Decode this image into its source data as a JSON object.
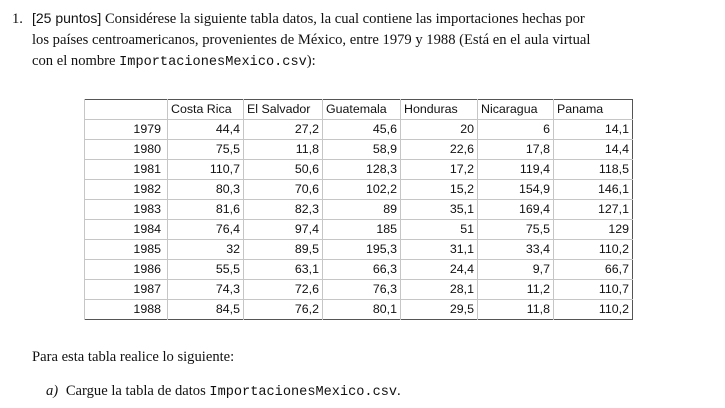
{
  "problem": {
    "number": "1.",
    "points": "[25 puntos]",
    "line1": "Considérese la siguiente tabla datos, la cual contiene las importaciones hechas por",
    "line2": "los países centroamericanos, provenientes de México, entre 1979 y 1988 (Está en el aula virtual",
    "line3_prefix": "con el nombre ",
    "filename": "ImportacionesMexico.csv",
    "line3_suffix": "):"
  },
  "table": {
    "headers": [
      "Costa Rica",
      "El Salvador",
      "Guatemala",
      "Honduras",
      "Nicaragua",
      "Panama"
    ],
    "rows": [
      {
        "year": "1979",
        "values": [
          "44,4",
          "27,2",
          "45,6",
          "20",
          "6",
          "14,1"
        ]
      },
      {
        "year": "1980",
        "values": [
          "75,5",
          "11,8",
          "58,9",
          "22,6",
          "17,8",
          "14,4"
        ]
      },
      {
        "year": "1981",
        "values": [
          "110,7",
          "50,6",
          "128,3",
          "17,2",
          "119,4",
          "118,5"
        ]
      },
      {
        "year": "1982",
        "values": [
          "80,3",
          "70,6",
          "102,2",
          "15,2",
          "154,9",
          "146,1"
        ]
      },
      {
        "year": "1983",
        "values": [
          "81,6",
          "82,3",
          "89",
          "35,1",
          "169,4",
          "127,1"
        ]
      },
      {
        "year": "1984",
        "values": [
          "76,4",
          "97,4",
          "185",
          "51",
          "75,5",
          "129"
        ]
      },
      {
        "year": "1985",
        "values": [
          "32",
          "89,5",
          "195,3",
          "31,1",
          "33,4",
          "110,2"
        ]
      },
      {
        "year": "1986",
        "values": [
          "55,5",
          "63,1",
          "66,3",
          "24,4",
          "9,7",
          "66,7"
        ]
      },
      {
        "year": "1987",
        "values": [
          "74,3",
          "72,6",
          "76,3",
          "28,1",
          "11,2",
          "110,7"
        ]
      },
      {
        "year": "1988",
        "values": [
          "84,5",
          "76,2",
          "80,1",
          "29,5",
          "11,8",
          "110,2"
        ]
      }
    ]
  },
  "instruction": "Para esta tabla realice lo siguiente:",
  "item_a": {
    "label": "a)",
    "text": "Cargue la tabla de datos ",
    "filename": "ImportacionesMexico.csv",
    "suffix": "."
  }
}
